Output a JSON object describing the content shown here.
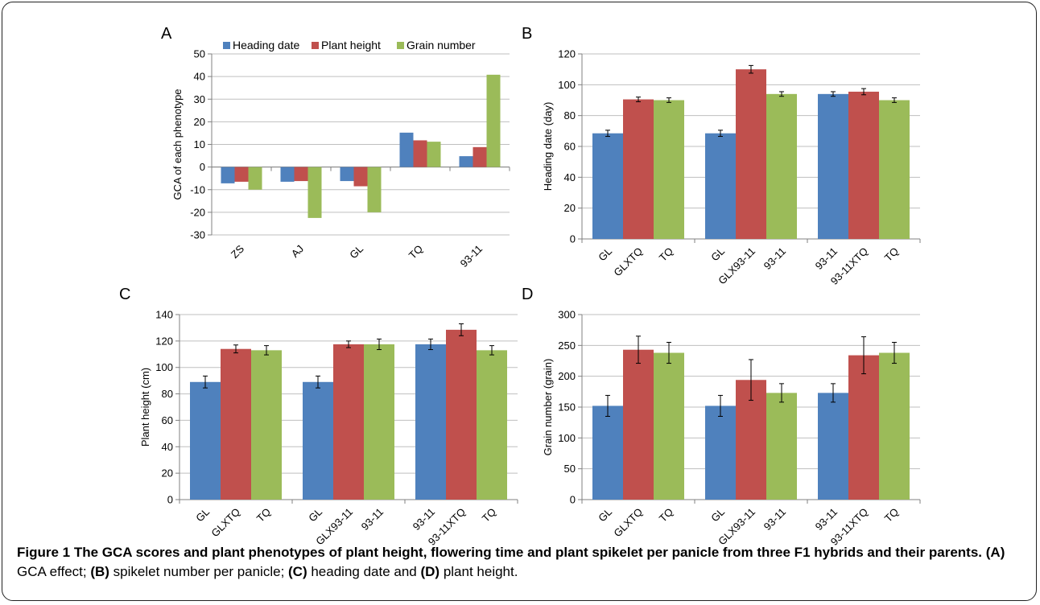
{
  "colors": {
    "blue": "#4f81bd",
    "red": "#c0504d",
    "green": "#9bbb59"
  },
  "caption": {
    "bold": "Figure 1 The GCA scores and plant phenotypes of plant height, flowering time and plant spikelet per panicle from three F1 hybrids and their parents.",
    "l1": "(A)",
    "t1": " GCA effect; ",
    "l2": "(B)",
    "t2": " spikelet number per panicle; ",
    "l3": "(C)",
    "t3": " heading date and ",
    "l4": "(D)",
    "t4": " plant height."
  },
  "chart_data": [
    {
      "panel": "A",
      "type": "bar",
      "title": "",
      "xlabel": "",
      "ylabel": "GCA of each phenotype",
      "ylim": [
        -30,
        50
      ],
      "ystep": 10,
      "grid": true,
      "legend": "top",
      "categories": [
        "ZS",
        "AJ",
        "GL",
        "TQ",
        "93-11"
      ],
      "series": [
        {
          "name": "Heading date",
          "color": "#4f81bd",
          "values": [
            -7.2,
            -6.5,
            -6.2,
            15.2,
            4.8
          ]
        },
        {
          "name": "Plant height",
          "color": "#c0504d",
          "values": [
            -6.5,
            -6.2,
            -8.5,
            11.8,
            8.8
          ]
        },
        {
          "name": "Grain number",
          "color": "#9bbb59",
          "values": [
            -10.0,
            -22.5,
            -20.0,
            11.2,
            40.8
          ]
        }
      ]
    },
    {
      "panel": "B",
      "type": "bar",
      "title": "",
      "xlabel": "",
      "ylabel": "Heading date (day)",
      "ylim": [
        0,
        120
      ],
      "ystep": 20,
      "grid": true,
      "groups": [
        {
          "labels": [
            "GL",
            "GLXTQ",
            "TQ"
          ],
          "values": [
            68.5,
            90.5,
            90.0
          ],
          "errors": [
            2.0,
            1.5,
            1.5
          ]
        },
        {
          "labels": [
            "GL",
            "GLX93-11",
            "93-11"
          ],
          "values": [
            68.5,
            110.0,
            94.0
          ],
          "errors": [
            2.0,
            2.5,
            1.5
          ]
        },
        {
          "labels": [
            "93-11",
            "93-11XTQ",
            "TQ"
          ],
          "values": [
            94.0,
            95.5,
            90.0
          ],
          "errors": [
            1.5,
            2.0,
            1.5
          ]
        }
      ]
    },
    {
      "panel": "C",
      "type": "bar",
      "title": "",
      "xlabel": "",
      "ylabel": "Plant height (cm)",
      "ylim": [
        0,
        140
      ],
      "ystep": 20,
      "grid": true,
      "groups": [
        {
          "labels": [
            "GL",
            "GLXTQ",
            "TQ"
          ],
          "values": [
            89.0,
            114.0,
            113.0
          ],
          "errors": [
            4.5,
            3.0,
            3.5
          ]
        },
        {
          "labels": [
            "GL",
            "GLX93-11",
            "93-11"
          ],
          "values": [
            89.0,
            117.5,
            117.5
          ],
          "errors": [
            4.5,
            2.5,
            4.0
          ]
        },
        {
          "labels": [
            "93-11",
            "93-11XTQ",
            "TQ"
          ],
          "values": [
            117.5,
            128.5,
            113.0
          ],
          "errors": [
            4.0,
            4.5,
            3.5
          ]
        }
      ]
    },
    {
      "panel": "D",
      "type": "bar",
      "title": "",
      "xlabel": "",
      "ylabel": "Grain number (grain)",
      "ylim": [
        0,
        300
      ],
      "ystep": 50,
      "grid": true,
      "groups": [
        {
          "labels": [
            "GL",
            "GLXTQ",
            "TQ"
          ],
          "values": [
            152,
            243,
            238
          ],
          "errors": [
            17,
            22,
            17
          ]
        },
        {
          "labels": [
            "GL",
            "GLX93-11",
            "93-11"
          ],
          "values": [
            152,
            194,
            173
          ],
          "errors": [
            17,
            33,
            15
          ]
        },
        {
          "labels": [
            "93-11",
            "93-11XTQ",
            "TQ"
          ],
          "values": [
            173,
            234,
            238
          ],
          "errors": [
            15,
            30,
            17
          ]
        }
      ]
    }
  ]
}
